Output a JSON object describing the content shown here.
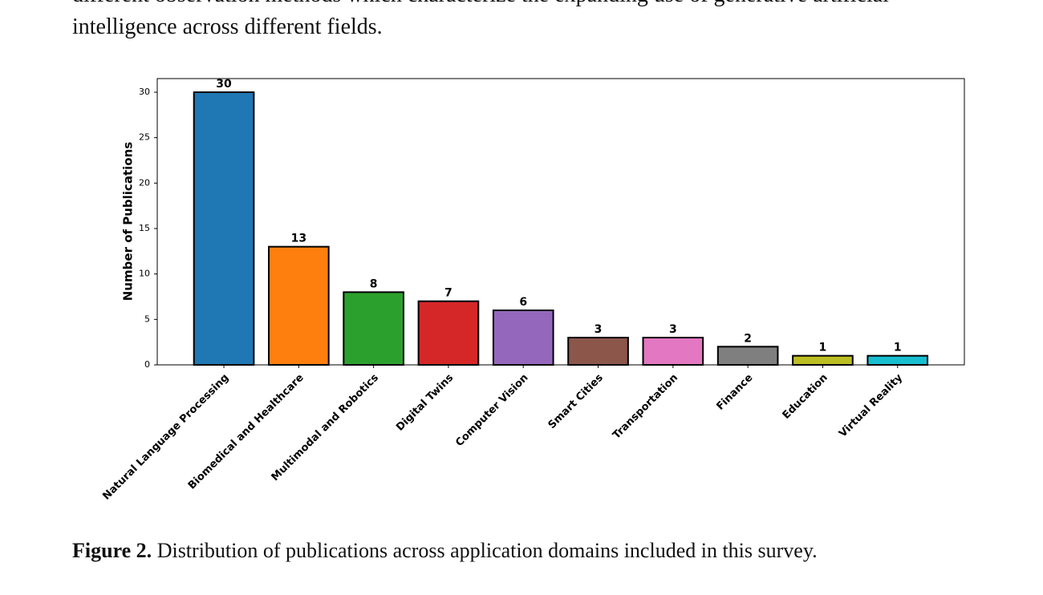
{
  "paragraph": {
    "lines": [
      "different observation methods which characterize the expanding use of generative artificial",
      "intelligence across different fields."
    ]
  },
  "chart_data": {
    "type": "bar",
    "y_label": "Number of Publications",
    "categories": [
      "Natural Language Processing",
      "Biomedical and Healthcare",
      "Multimodal and Robotics",
      "Digital Twins",
      "Computer Vision",
      "Smart Cities",
      "Transportation",
      "Finance",
      "Education",
      "Virtual Reality"
    ],
    "values": [
      30,
      13,
      8,
      7,
      6,
      3,
      3,
      2,
      1,
      1
    ],
    "colors": [
      "#1f77b4",
      "#ff7f0e",
      "#2ca02c",
      "#d62728",
      "#9467bd",
      "#8c564b",
      "#e377c2",
      "#7f7f7f",
      "#bcbd22",
      "#17becf"
    ],
    "edge_color": "#000000",
    "ylim": [
      0,
      31.5
    ],
    "yticks": [
      0,
      5,
      10,
      15,
      20,
      25,
      30
    ],
    "grid": false
  },
  "caption": {
    "label": "Figure 2.",
    "text": "Distribution of publications across application domains included in this survey."
  }
}
